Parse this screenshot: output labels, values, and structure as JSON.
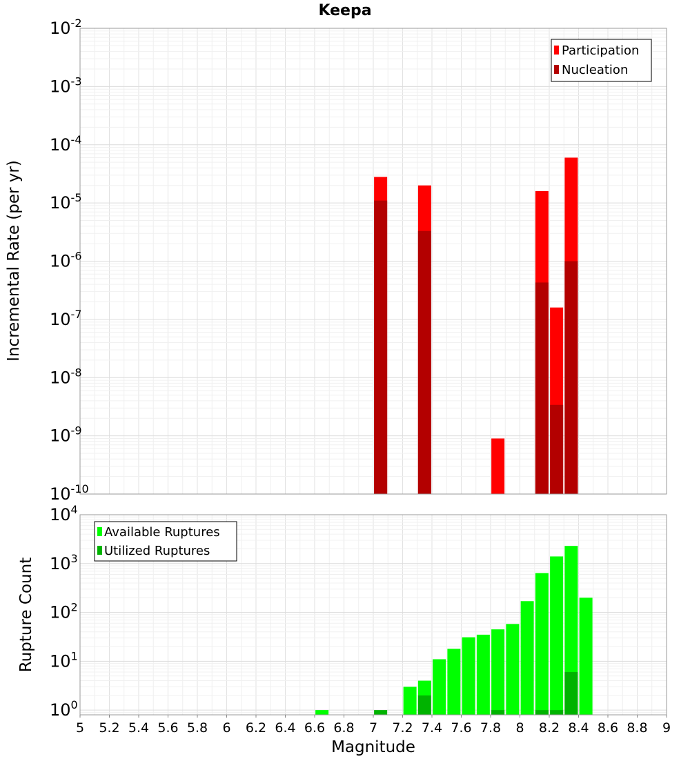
{
  "figure": {
    "title": "Keepa",
    "xlabel": "Magnitude",
    "x_ticks": [
      "5",
      "5.2",
      "5.4",
      "5.6",
      "5.8",
      "6",
      "6.2",
      "6.4",
      "6.6",
      "6.8",
      "7",
      "7.2",
      "7.4",
      "7.6",
      "7.8",
      "8",
      "8.2",
      "8.4",
      "8.6",
      "8.8",
      "9"
    ]
  },
  "chart_data": [
    {
      "type": "bar",
      "title": "Keepa",
      "xlabel": "Magnitude",
      "ylabel": "Incremental Rate (per yr)",
      "xlim": [
        5,
        9
      ],
      "ylim": [
        1e-10,
        0.01
      ],
      "yscale": "log",
      "grid": true,
      "legend_position": "top-right",
      "y_ticks": [
        {
          "base": "10",
          "exp": "-10",
          "value": 1e-10
        },
        {
          "base": "10",
          "exp": "-9",
          "value": 1e-09
        },
        {
          "base": "10",
          "exp": "-8",
          "value": 1e-08
        },
        {
          "base": "10",
          "exp": "-7",
          "value": 1e-07
        },
        {
          "base": "10",
          "exp": "-6",
          "value": 1e-06
        },
        {
          "base": "10",
          "exp": "-5",
          "value": 1e-05
        },
        {
          "base": "10",
          "exp": "-4",
          "value": 0.0001
        },
        {
          "base": "10",
          "exp": "-3",
          "value": 0.001
        },
        {
          "base": "10",
          "exp": "-2",
          "value": 0.01
        }
      ],
      "series": [
        {
          "name": "Participation",
          "color": "#ff0000",
          "points": [
            {
              "x": 7.05,
              "y": 2.8e-05
            },
            {
              "x": 7.35,
              "y": 2e-05
            },
            {
              "x": 7.85,
              "y": 9e-10
            },
            {
              "x": 8.15,
              "y": 1.6e-05
            },
            {
              "x": 8.25,
              "y": 1.6e-07
            },
            {
              "x": 8.35,
              "y": 6e-05
            }
          ]
        },
        {
          "name": "Nucleation",
          "color": "#b30000",
          "points": [
            {
              "x": 7.05,
              "y": 1.1e-05
            },
            {
              "x": 7.35,
              "y": 3.3e-06
            },
            {
              "x": 8.15,
              "y": 4.3e-07
            },
            {
              "x": 8.25,
              "y": 3.4e-09
            },
            {
              "x": 8.35,
              "y": 1e-06
            }
          ]
        }
      ]
    },
    {
      "type": "bar",
      "xlabel": "Magnitude",
      "ylabel": "Rupture Count",
      "xlim": [
        5,
        9
      ],
      "ylim": [
        0.8,
        10000
      ],
      "yscale": "log",
      "grid": true,
      "legend_position": "top-left",
      "y_ticks": [
        {
          "base": "10",
          "exp": "0",
          "value": 1
        },
        {
          "base": "10",
          "exp": "1",
          "value": 10
        },
        {
          "base": "10",
          "exp": "2",
          "value": 100
        },
        {
          "base": "10",
          "exp": "3",
          "value": 1000
        },
        {
          "base": "10",
          "exp": "4",
          "value": 10000
        }
      ],
      "series": [
        {
          "name": "Available Ruptures",
          "color": "#00ff00",
          "points": [
            {
              "x": 6.65,
              "y": 1
            },
            {
              "x": 7.25,
              "y": 3
            },
            {
              "x": 7.35,
              "y": 4
            },
            {
              "x": 7.45,
              "y": 11
            },
            {
              "x": 7.55,
              "y": 18
            },
            {
              "x": 7.65,
              "y": 31
            },
            {
              "x": 7.75,
              "y": 35
            },
            {
              "x": 7.85,
              "y": 45
            },
            {
              "x": 7.95,
              "y": 58
            },
            {
              "x": 8.05,
              "y": 170
            },
            {
              "x": 8.15,
              "y": 640
            },
            {
              "x": 8.25,
              "y": 1400
            },
            {
              "x": 8.35,
              "y": 2300
            },
            {
              "x": 8.45,
              "y": 200
            }
          ]
        },
        {
          "name": "Utilized Ruptures",
          "color": "#00b300",
          "points": [
            {
              "x": 7.05,
              "y": 1
            },
            {
              "x": 7.35,
              "y": 2
            },
            {
              "x": 7.85,
              "y": 1
            },
            {
              "x": 8.15,
              "y": 1
            },
            {
              "x": 8.25,
              "y": 1
            },
            {
              "x": 8.35,
              "y": 6
            }
          ]
        }
      ]
    }
  ]
}
